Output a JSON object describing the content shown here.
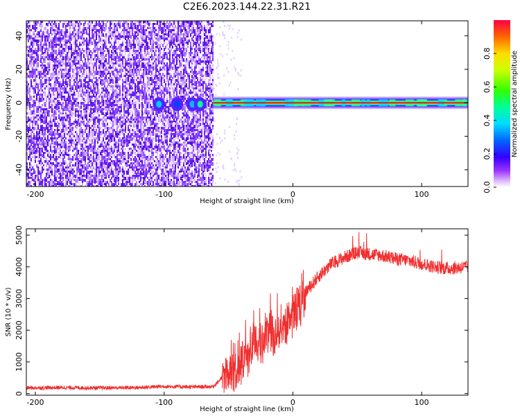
{
  "title": "C2E6.2023.144.22.31.R21",
  "chart_data": [
    {
      "type": "heatmap",
      "xlabel": "Height of straight line (km)",
      "ylabel": "Frequency (Hz)",
      "xlim": [
        -207,
        136
      ],
      "ylim": [
        -50,
        49
      ],
      "xticks": [
        -200,
        -100,
        0,
        100
      ],
      "yticks": [
        -40,
        -20,
        0,
        20,
        40
      ],
      "colorbar": {
        "label": "Normalized spectral amplitude",
        "range": [
          0,
          1
        ],
        "ticks": [
          "0.0",
          "0.2",
          "0.4",
          "0.6",
          "0.8"
        ]
      },
      "regions": [
        {
          "x_range": [
            -207,
            -62
          ],
          "freq_range": [
            -50,
            49
          ],
          "level": "low",
          "note": "broadband noise"
        },
        {
          "x_range": [
            -62,
            136
          ],
          "freq_center": 0,
          "level": "high",
          "note": "narrow carrier line"
        }
      ]
    },
    {
      "type": "line",
      "xlabel": "Height of straight line (km)",
      "ylabel": "SNR (10 * v/v)",
      "xlim": [
        -207,
        136
      ],
      "ylim": [
        -50,
        5200
      ],
      "xticks": [
        -200,
        -100,
        0,
        100
      ],
      "yticks": [
        0,
        1000,
        2000,
        3000,
        4000,
        5000
      ],
      "color": "#f03030",
      "series": [
        {
          "x": [
            -207,
            -180,
            -150,
            -120,
            -100,
            -80,
            -62,
            -55,
            -50,
            -45,
            -40,
            -35,
            -30,
            -25,
            -20,
            -15,
            -10,
            -5,
            0,
            10,
            20,
            30,
            40,
            50,
            60,
            70,
            80,
            90,
            100,
            110,
            120,
            136
          ],
          "values": [
            180,
            190,
            180,
            190,
            230,
            210,
            220,
            500,
            800,
            700,
            900,
            1300,
            1800,
            1500,
            2100,
            1800,
            2200,
            2300,
            2600,
            3200,
            3700,
            4100,
            4300,
            4450,
            4400,
            4350,
            4250,
            4200,
            4100,
            4000,
            3950,
            4000
          ]
        }
      ]
    }
  ]
}
